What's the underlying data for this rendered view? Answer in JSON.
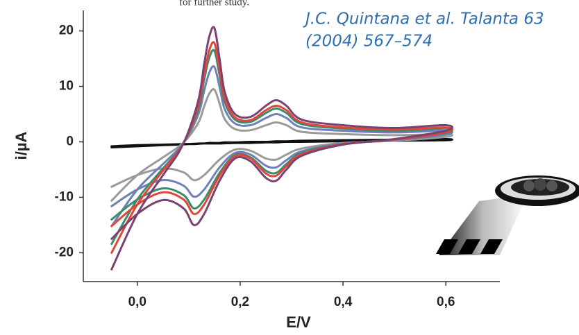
{
  "chart_data": {
    "type": "line",
    "clipped_text": "for further study.",
    "annotation": [
      "J.C. Quintana et al. Talanta 63",
      "(2004) 567–574"
    ],
    "xlabel": "E/V",
    "ylabel": "i/µA",
    "xlim": [
      -0.105,
      0.705
    ],
    "ylim": [
      -25.2,
      23.7
    ],
    "xticks": [
      {
        "value": 0,
        "label": "0,0"
      },
      {
        "value": 0.2,
        "label": "0,2"
      },
      {
        "value": 0.4,
        "label": "0,4"
      },
      {
        "value": 0.6,
        "label": "0,6"
      }
    ],
    "yticks": [
      -20,
      -10,
      0,
      10,
      20
    ],
    "x": [
      -0.05,
      0,
      0.05,
      0.08,
      0.1,
      0.12,
      0.13,
      0.14,
      0.15,
      0.16,
      0.17,
      0.19,
      0.22,
      0.25,
      0.27,
      0.29,
      0.32,
      0.4,
      0.5,
      0.6,
      0.6,
      0.5,
      0.4,
      0.32,
      0.29,
      0.27,
      0.25,
      0.22,
      0.19,
      0.16,
      0.13,
      0.11,
      0.09,
      0.05,
      0,
      -0.05
    ],
    "series": [
      {
        "color": "#111111",
        "values": [
          -1,
          -0.8,
          -0.6,
          -0.5,
          -0.4,
          -0.3,
          -0.3,
          -0.2,
          -0.2,
          -0.2,
          -0.1,
          -0.1,
          0,
          0,
          0.1,
          0.1,
          0.2,
          0.3,
          0.4,
          0.5,
          0.3,
          0.2,
          0.1,
          0,
          0,
          -0.1,
          -0.1,
          -0.2,
          -0.2,
          -0.3,
          -0.3,
          -0.4,
          -0.4,
          -0.5,
          -0.6,
          -0.8
        ]
      },
      {
        "color": "#9a9a9a",
        "values": [
          -10.6,
          -6,
          -2.8,
          -0.9,
          0.9,
          3.7,
          6.4,
          8.7,
          9.4,
          6.9,
          4.1,
          2.3,
          2.1,
          3,
          3.5,
          3,
          1.8,
          1.4,
          1.2,
          1.4,
          0.9,
          0.2,
          -0.2,
          -1.2,
          -2.3,
          -3.2,
          -3,
          -1.6,
          -1.4,
          -3.2,
          -6,
          -6.9,
          -5.5,
          -4.8,
          -6,
          -8.1
        ]
      },
      {
        "color": "#6d80b8",
        "values": [
          -15.2,
          -8.6,
          -4,
          -1.3,
          1.3,
          5.3,
          9.2,
          12.5,
          13.5,
          9.9,
          5.9,
          3.3,
          3,
          4.3,
          5,
          4.3,
          2.6,
          2,
          1.7,
          2,
          1.3,
          0.3,
          -0.3,
          -1.7,
          -3.3,
          -4.6,
          -4.3,
          -2.3,
          -2,
          -4.6,
          -8.6,
          -9.9,
          -7.9,
          -6.9,
          -8.6,
          -11.6
        ]
      },
      {
        "color": "#3d8a6c",
        "values": [
          -18.4,
          -10.4,
          -4.8,
          -1.6,
          1.6,
          6.4,
          11.2,
          15.2,
          16.4,
          12,
          7.2,
          4,
          3.6,
          5.2,
          6,
          5.2,
          3.2,
          2.4,
          2,
          2.4,
          1.6,
          0.4,
          -0.4,
          -2,
          -4,
          -5.6,
          -5.2,
          -2.8,
          -2.4,
          -5.6,
          -10.4,
          -12,
          -9.6,
          -8.4,
          -10.4,
          -14
        ]
      },
      {
        "color": "#e0463a",
        "values": [
          -20,
          -11.3,
          -5.2,
          -1.7,
          1.7,
          7,
          12.2,
          16.5,
          17.8,
          13,
          7.8,
          4.4,
          3.9,
          5.7,
          6.5,
          5.7,
          3.5,
          2.6,
          2.2,
          2.6,
          1.7,
          0.4,
          -0.4,
          -2.2,
          -4.4,
          -6.1,
          -5.7,
          -3,
          -2.6,
          -6.1,
          -11.3,
          -13,
          -10.4,
          -9.1,
          -11.3,
          -15.2
        ]
      },
      {
        "color": "#7a4270",
        "values": [
          -23,
          -13,
          -6,
          -2,
          2,
          8,
          14,
          19,
          20.5,
          15,
          9,
          5,
          4.5,
          6.5,
          7.5,
          6.5,
          4,
          3,
          2.5,
          3,
          2,
          0.5,
          -0.5,
          -2.5,
          -5,
          -7,
          -6.5,
          -3.5,
          -3,
          -7,
          -13,
          -15,
          -12,
          -10.5,
          -13,
          -17.5
        ]
      }
    ]
  }
}
